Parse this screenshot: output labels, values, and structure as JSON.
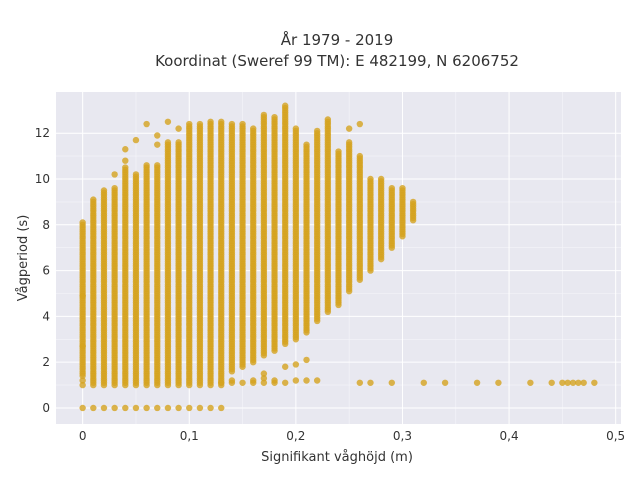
{
  "chart_data": {
    "type": "scatter",
    "title": "År 1979 - 2019",
    "subtitle": "Koordinat (Sweref 99 TM): E 482199, N 6206752",
    "xlabel": "Signifikant våghöjd (m)",
    "ylabel": "Vågperiod (s)",
    "xlim": [
      -0.025,
      0.505
    ],
    "ylim": [
      -0.7,
      13.8
    ],
    "x_ticks": [
      0,
      0.1,
      0.2,
      0.3,
      0.4,
      0.5
    ],
    "x_tick_labels": [
      "0",
      "0,1",
      "0,2",
      "0,3",
      "0,4",
      "0,5"
    ],
    "y_ticks": [
      0,
      2,
      4,
      6,
      8,
      10,
      12
    ],
    "y_tick_labels": [
      "0",
      "2",
      "4",
      "6",
      "8",
      "10",
      "12"
    ],
    "grid": true,
    "legend": "none",
    "colors": {
      "marker": "#d4a21f",
      "plot_bg": "#e8e8f0",
      "grid": "#ffffff"
    },
    "columns": [
      {
        "x": 0.0,
        "ymin": 1.4,
        "ymax": 8.1,
        "extra": [
          0,
          2.7,
          4.9,
          1.2,
          1.0
        ]
      },
      {
        "x": 0.01,
        "ymin": 1.0,
        "ymax": 9.1,
        "extra": [
          0
        ]
      },
      {
        "x": 0.02,
        "ymin": 1.0,
        "ymax": 9.5,
        "extra": [
          0
        ]
      },
      {
        "x": 0.03,
        "ymin": 1.0,
        "ymax": 9.6,
        "extra": [
          0,
          10.2
        ]
      },
      {
        "x": 0.04,
        "ymin": 1.0,
        "ymax": 10.5,
        "extra": [
          0,
          11.3,
          10.8
        ]
      },
      {
        "x": 0.05,
        "ymin": 1.0,
        "ymax": 10.2,
        "extra": [
          0,
          11.7
        ]
      },
      {
        "x": 0.06,
        "ymin": 1.0,
        "ymax": 10.6,
        "extra": [
          0,
          12.4
        ]
      },
      {
        "x": 0.07,
        "ymin": 1.0,
        "ymax": 10.6,
        "extra": [
          0,
          11.5,
          11.9
        ]
      },
      {
        "x": 0.08,
        "ymin": 1.0,
        "ymax": 11.6,
        "extra": [
          0,
          12.5
        ]
      },
      {
        "x": 0.09,
        "ymin": 1.0,
        "ymax": 11.6,
        "extra": [
          0,
          12.2
        ]
      },
      {
        "x": 0.1,
        "ymin": 1.0,
        "ymax": 12.4,
        "extra": [
          0
        ]
      },
      {
        "x": 0.11,
        "ymin": 1.0,
        "ymax": 12.4,
        "extra": [
          0
        ]
      },
      {
        "x": 0.12,
        "ymin": 1.0,
        "ymax": 12.5,
        "extra": [
          0
        ]
      },
      {
        "x": 0.13,
        "ymin": 1.0,
        "ymax": 12.5,
        "extra": [
          0,
          1.1
        ]
      },
      {
        "x": 0.14,
        "ymin": 1.6,
        "ymax": 12.4,
        "extra": [
          1.1,
          1.2
        ]
      },
      {
        "x": 0.15,
        "ymin": 1.8,
        "ymax": 12.4,
        "extra": [
          1.1
        ]
      },
      {
        "x": 0.16,
        "ymin": 2.0,
        "ymax": 12.2,
        "extra": [
          1.1,
          1.2
        ]
      },
      {
        "x": 0.17,
        "ymin": 2.3,
        "ymax": 12.8,
        "extra": [
          1.1,
          1.3,
          1.5
        ]
      },
      {
        "x": 0.18,
        "ymin": 2.5,
        "ymax": 12.7,
        "extra": [
          1.1,
          1.2
        ]
      },
      {
        "x": 0.19,
        "ymin": 2.8,
        "ymax": 13.2,
        "extra": [
          1.1,
          1.8
        ]
      },
      {
        "x": 0.2,
        "ymin": 3.0,
        "ymax": 12.2,
        "extra": [
          1.2,
          1.9
        ]
      },
      {
        "x": 0.21,
        "ymin": 3.3,
        "ymax": 11.5,
        "extra": [
          1.2,
          2.1
        ]
      },
      {
        "x": 0.22,
        "ymin": 3.8,
        "ymax": 12.1,
        "extra": [
          1.2
        ]
      },
      {
        "x": 0.23,
        "ymin": 4.2,
        "ymax": 12.6,
        "extra": []
      },
      {
        "x": 0.24,
        "ymin": 4.5,
        "ymax": 11.2,
        "extra": []
      },
      {
        "x": 0.25,
        "ymin": 5.1,
        "ymax": 11.6,
        "extra": [
          12.2
        ]
      },
      {
        "x": 0.26,
        "ymin": 5.6,
        "ymax": 11.0,
        "extra": [
          12.4,
          1.1
        ]
      },
      {
        "x": 0.27,
        "ymin": 6.0,
        "ymax": 10.0,
        "extra": [
          1.1
        ]
      },
      {
        "x": 0.28,
        "ymin": 6.5,
        "ymax": 10.0,
        "extra": []
      },
      {
        "x": 0.29,
        "ymin": 7.0,
        "ymax": 9.6,
        "extra": [
          1.1
        ]
      },
      {
        "x": 0.3,
        "ymin": 7.5,
        "ymax": 9.6,
        "extra": []
      },
      {
        "x": 0.31,
        "ymin": 8.2,
        "ymax": 9.0,
        "extra": []
      }
    ],
    "outliers": [
      [
        0.32,
        1.1
      ],
      [
        0.34,
        1.1
      ],
      [
        0.37,
        1.1
      ],
      [
        0.39,
        1.1
      ],
      [
        0.42,
        1.1
      ],
      [
        0.44,
        1.1
      ],
      [
        0.45,
        1.1
      ],
      [
        0.455,
        1.1
      ],
      [
        0.46,
        1.1
      ],
      [
        0.465,
        1.1
      ],
      [
        0.47,
        1.1
      ],
      [
        0.48,
        1.1
      ]
    ]
  }
}
